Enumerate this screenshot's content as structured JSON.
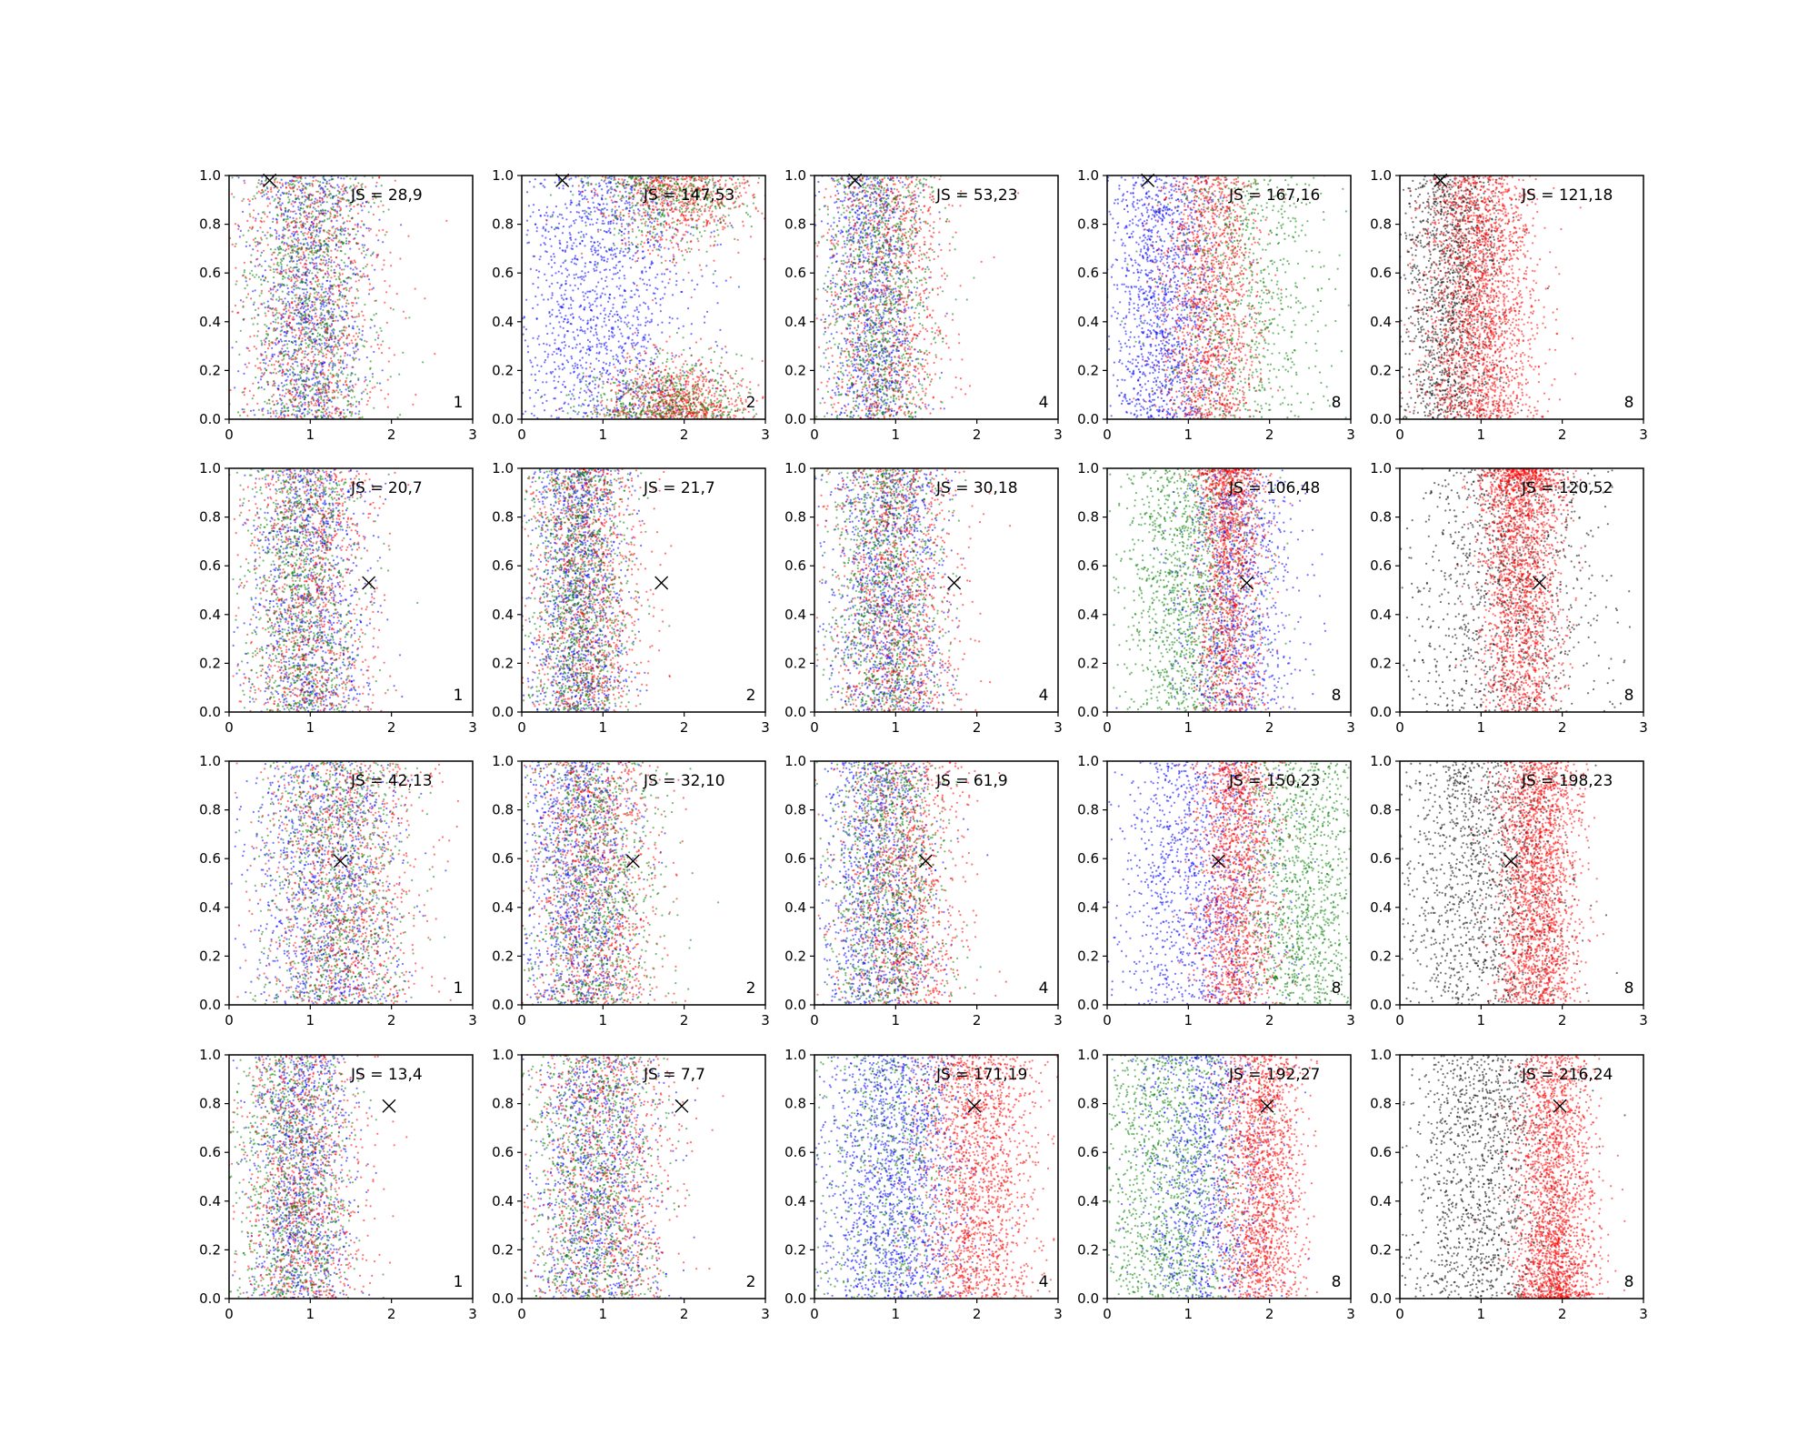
{
  "colors": {
    "blue": "#0000ff",
    "red": "#ff0000",
    "green": "#008000",
    "black": "#000000"
  },
  "chart_data": {
    "type": "scatter",
    "layout": {
      "rows": 4,
      "cols": 5
    },
    "xlim": [
      0,
      3
    ],
    "ylim": [
      0,
      1
    ],
    "xticks": [
      "0",
      "1",
      "2",
      "3"
    ],
    "yticks": [
      "0.0",
      "0.2",
      "0.4",
      "0.6",
      "0.8",
      "1.0"
    ],
    "marker_legend": "×",
    "panels": [
      {
        "row": 0,
        "col": 0,
        "js": "JS = 28,9",
        "n": "1",
        "marker": [
          0.5,
          0.98
        ],
        "groups": [
          {
            "color": "blue",
            "mx": 1.0,
            "sx": 0.35,
            "n": 1000
          },
          {
            "color": "red",
            "mx": 1.0,
            "sx": 0.45,
            "n": 1000
          },
          {
            "color": "green",
            "mx": 1.0,
            "sx": 0.4,
            "n": 1000
          }
        ]
      },
      {
        "row": 0,
        "col": 1,
        "js": "JS = 147,53",
        "n": "2",
        "marker": [
          0.5,
          0.98
        ],
        "groups": [
          {
            "color": "blue",
            "mx": 1.0,
            "sx": 0.55,
            "n": 1400
          },
          {
            "color": "red",
            "mx": 1.9,
            "sx": 0.45,
            "n": 1300,
            "yskew": "ends"
          },
          {
            "color": "green",
            "mx": 1.8,
            "sx": 0.5,
            "n": 900,
            "yskew": "ends"
          }
        ]
      },
      {
        "row": 0,
        "col": 2,
        "js": "JS = 53,23",
        "n": "4",
        "marker": [
          0.5,
          0.98
        ],
        "groups": [
          {
            "color": "blue",
            "mx": 0.7,
            "sx": 0.3,
            "n": 1000
          },
          {
            "color": "red",
            "mx": 0.9,
            "sx": 0.4,
            "n": 1000
          },
          {
            "color": "green",
            "mx": 0.8,
            "sx": 0.35,
            "n": 1000
          }
        ]
      },
      {
        "row": 0,
        "col": 3,
        "js": "JS = 167,16",
        "n": "8",
        "marker": [
          0.5,
          0.98
        ],
        "groups": [
          {
            "color": "blue",
            "mx": 0.7,
            "sx": 0.35,
            "n": 1400
          },
          {
            "color": "red",
            "mx": 1.3,
            "sx": 0.3,
            "n": 1400
          },
          {
            "color": "green",
            "mx": 1.7,
            "sx": 0.5,
            "n": 800
          }
        ]
      },
      {
        "row": 0,
        "col": 4,
        "js": "JS = 121,18",
        "n": "8",
        "marker": [
          0.5,
          0.98
        ],
        "groups": [
          {
            "color": "black",
            "mx": 0.6,
            "sx": 0.3,
            "n": 1400
          },
          {
            "color": "red",
            "mx": 1.0,
            "sx": 0.35,
            "n": 2200
          }
        ]
      },
      {
        "row": 1,
        "col": 0,
        "js": "JS = 20,7",
        "n": "1",
        "marker": [
          1.72,
          0.53
        ],
        "groups": [
          {
            "color": "blue",
            "mx": 1.0,
            "sx": 0.35,
            "n": 1000
          },
          {
            "color": "red",
            "mx": 1.0,
            "sx": 0.4,
            "n": 1000
          },
          {
            "color": "green",
            "mx": 0.9,
            "sx": 0.35,
            "n": 1000
          }
        ]
      },
      {
        "row": 1,
        "col": 1,
        "js": "JS = 21,7",
        "n": "2",
        "marker": [
          1.72,
          0.53
        ],
        "groups": [
          {
            "color": "blue",
            "mx": 0.7,
            "sx": 0.3,
            "n": 1100
          },
          {
            "color": "red",
            "mx": 0.8,
            "sx": 0.35,
            "n": 1100
          },
          {
            "color": "green",
            "mx": 0.7,
            "sx": 0.3,
            "n": 1100
          }
        ]
      },
      {
        "row": 1,
        "col": 2,
        "js": "JS = 30,18",
        "n": "4",
        "marker": [
          1.72,
          0.53
        ],
        "groups": [
          {
            "color": "blue",
            "mx": 0.9,
            "sx": 0.35,
            "n": 1100
          },
          {
            "color": "red",
            "mx": 1.0,
            "sx": 0.4,
            "n": 1100
          },
          {
            "color": "green",
            "mx": 0.9,
            "sx": 0.35,
            "n": 1000
          }
        ]
      },
      {
        "row": 1,
        "col": 3,
        "js": "JS = 106,48",
        "n": "8",
        "marker": [
          1.72,
          0.53
        ],
        "groups": [
          {
            "color": "green",
            "mx": 1.0,
            "sx": 0.4,
            "n": 1300
          },
          {
            "color": "blue",
            "mx": 1.6,
            "sx": 0.35,
            "n": 1000
          },
          {
            "color": "red",
            "mx": 1.5,
            "sx": 0.2,
            "n": 1400,
            "yskew": "top"
          }
        ]
      },
      {
        "row": 1,
        "col": 4,
        "js": "JS = 120,52",
        "n": "8",
        "marker": [
          1.72,
          0.53
        ],
        "groups": [
          {
            "color": "black",
            "mx": 1.3,
            "sx": 0.6,
            "n": 1100
          },
          {
            "color": "red",
            "mx": 1.5,
            "sx": 0.25,
            "n": 2100,
            "yskew": "top"
          }
        ]
      },
      {
        "row": 2,
        "col": 0,
        "js": "JS = 42,13",
        "n": "1",
        "marker": [
          1.37,
          0.59
        ],
        "groups": [
          {
            "color": "blue",
            "mx": 1.2,
            "sx": 0.45,
            "n": 1100
          },
          {
            "color": "red",
            "mx": 1.4,
            "sx": 0.5,
            "n": 1100
          },
          {
            "color": "green",
            "mx": 1.3,
            "sx": 0.45,
            "n": 1000
          }
        ]
      },
      {
        "row": 2,
        "col": 1,
        "js": "JS = 32,10",
        "n": "2",
        "marker": [
          1.37,
          0.59
        ],
        "groups": [
          {
            "color": "blue",
            "mx": 0.7,
            "sx": 0.35,
            "n": 1100
          },
          {
            "color": "red",
            "mx": 0.9,
            "sx": 0.4,
            "n": 1100
          },
          {
            "color": "green",
            "mx": 0.9,
            "sx": 0.4,
            "n": 1000
          }
        ]
      },
      {
        "row": 2,
        "col": 2,
        "js": "JS = 61,9",
        "n": "4",
        "marker": [
          1.37,
          0.59
        ],
        "groups": [
          {
            "color": "blue",
            "mx": 0.8,
            "sx": 0.35,
            "n": 1100
          },
          {
            "color": "red",
            "mx": 1.1,
            "sx": 0.4,
            "n": 1100
          },
          {
            "color": "green",
            "mx": 0.9,
            "sx": 0.35,
            "n": 1000
          }
        ]
      },
      {
        "row": 2,
        "col": 3,
        "js": "JS = 150,23",
        "n": "8",
        "marker": [
          1.37,
          0.59
        ],
        "groups": [
          {
            "color": "blue",
            "mx": 1.1,
            "sx": 0.5,
            "n": 1200
          },
          {
            "color": "red",
            "mx": 1.6,
            "sx": 0.25,
            "n": 1500
          },
          {
            "color": "green",
            "mx": 2.4,
            "sx": 0.4,
            "n": 1200
          }
        ]
      },
      {
        "row": 2,
        "col": 4,
        "js": "JS = 198,23",
        "n": "8",
        "marker": [
          1.37,
          0.59
        ],
        "groups": [
          {
            "color": "black",
            "mx": 1.0,
            "sx": 0.5,
            "n": 1300
          },
          {
            "color": "red",
            "mx": 1.7,
            "sx": 0.25,
            "n": 2100
          }
        ]
      },
      {
        "row": 3,
        "col": 0,
        "js": "JS = 13,4",
        "n": "1",
        "marker": [
          1.97,
          0.79
        ],
        "groups": [
          {
            "color": "blue",
            "mx": 0.9,
            "sx": 0.3,
            "n": 1000
          },
          {
            "color": "red",
            "mx": 0.9,
            "sx": 0.4,
            "n": 1000
          },
          {
            "color": "green",
            "mx": 0.8,
            "sx": 0.35,
            "n": 1000
          }
        ]
      },
      {
        "row": 3,
        "col": 1,
        "js": "JS = 7,7",
        "n": "2",
        "marker": [
          1.97,
          0.79
        ],
        "groups": [
          {
            "color": "blue",
            "mx": 0.9,
            "sx": 0.4,
            "n": 1000
          },
          {
            "color": "red",
            "mx": 1.0,
            "sx": 0.45,
            "n": 1000
          },
          {
            "color": "green",
            "mx": 0.9,
            "sx": 0.4,
            "n": 1000
          }
        ]
      },
      {
        "row": 3,
        "col": 2,
        "js": "JS = 171,19",
        "n": "4",
        "marker": [
          1.97,
          0.79
        ],
        "groups": [
          {
            "color": "blue",
            "mx": 1.0,
            "sx": 0.45,
            "n": 1600
          },
          {
            "color": "green",
            "mx": 1.0,
            "sx": 0.45,
            "n": 600
          },
          {
            "color": "red",
            "mx": 2.0,
            "sx": 0.35,
            "n": 1700
          }
        ]
      },
      {
        "row": 3,
        "col": 3,
        "js": "JS = 192,27",
        "n": "8",
        "marker": [
          1.97,
          0.79
        ],
        "groups": [
          {
            "color": "green",
            "mx": 0.8,
            "sx": 0.45,
            "n": 1300
          },
          {
            "color": "blue",
            "mx": 1.2,
            "sx": 0.4,
            "n": 1000
          },
          {
            "color": "red",
            "mx": 1.9,
            "sx": 0.25,
            "n": 1700
          }
        ]
      },
      {
        "row": 3,
        "col": 4,
        "js": "JS = 216,24",
        "n": "8",
        "marker": [
          1.97,
          0.79
        ],
        "groups": [
          {
            "color": "black",
            "mx": 1.0,
            "sx": 0.45,
            "n": 1300
          },
          {
            "color": "red",
            "mx": 1.9,
            "sx": 0.25,
            "n": 2200,
            "yskew": "bottom"
          }
        ]
      }
    ]
  }
}
